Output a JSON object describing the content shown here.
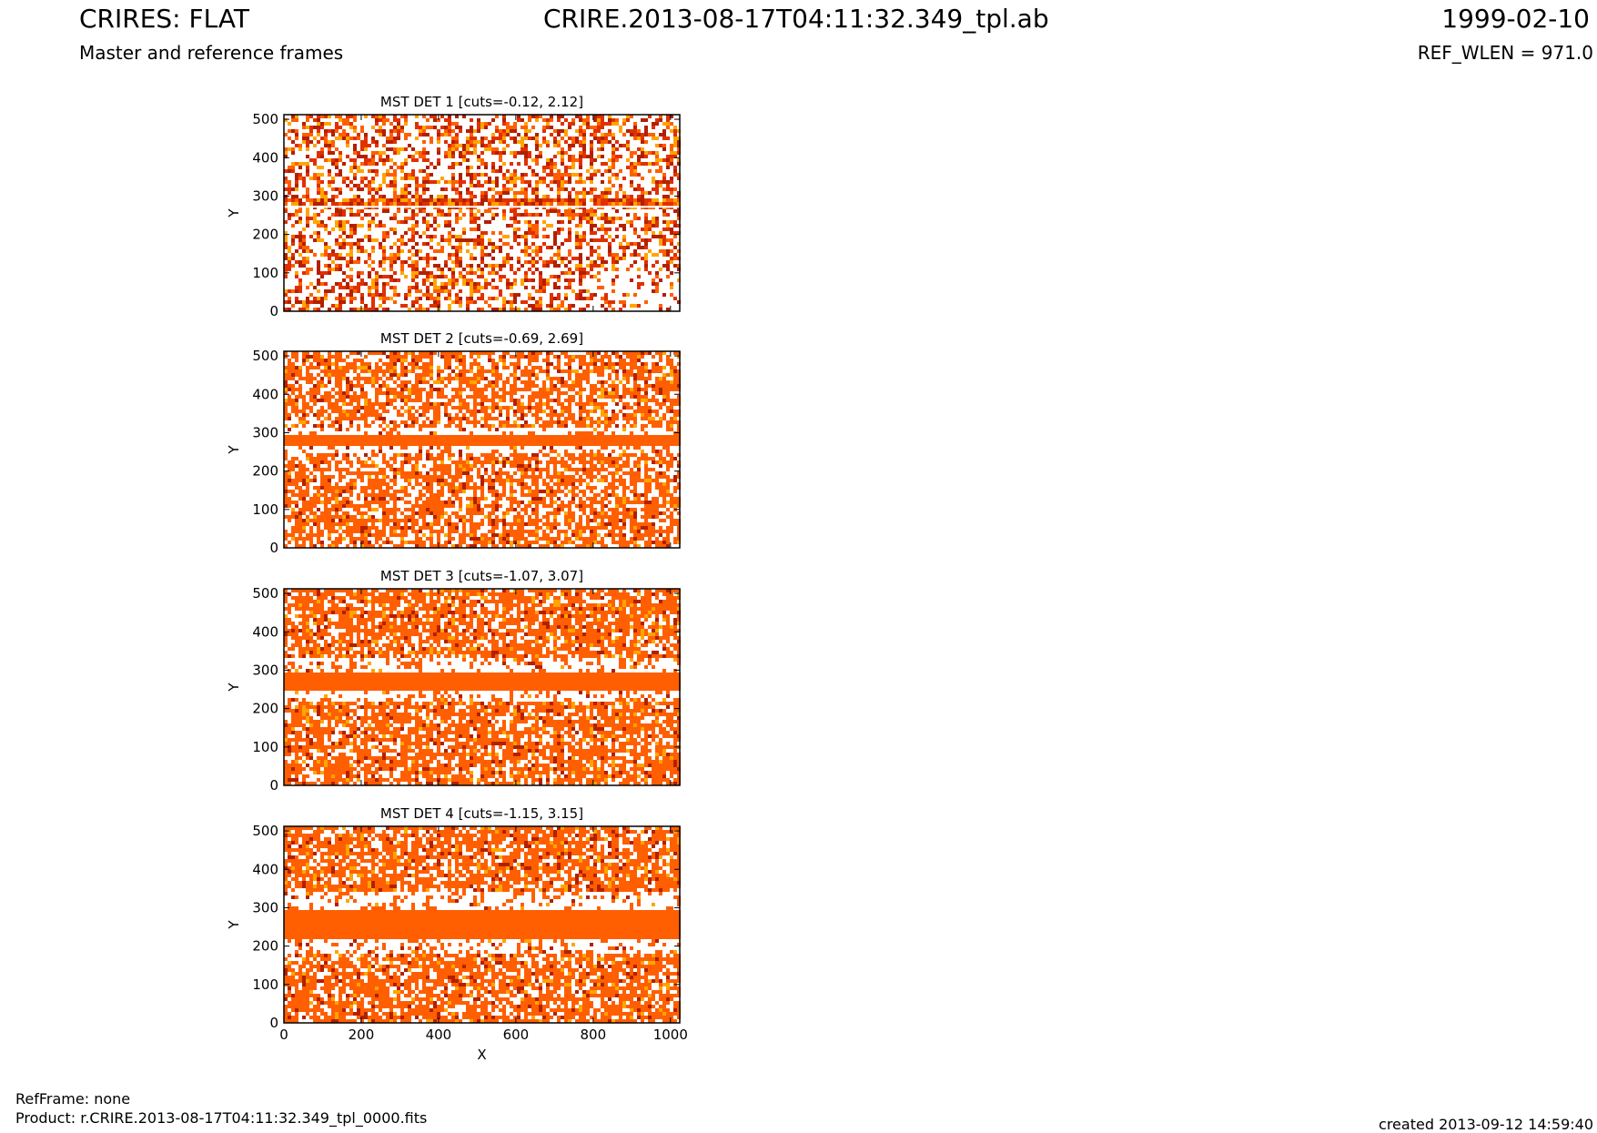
{
  "header": {
    "title": "CRIRES: FLAT",
    "subtitle": "Master and reference frames",
    "file": "CRIRE.2013-08-17T04:11:32.349_tpl.ab",
    "date": "1999-02-10",
    "ref_wlen": "REF_WLEN = 971.0"
  },
  "footer": {
    "refframe": "RefFrame: none",
    "product": "Product: r.CRIRE.2013-08-17T04:11:32.349_tpl_0000.fits",
    "created": "created 2013-09-12 14:59:40"
  },
  "colors": {
    "dominant": "#ff5f00",
    "dark_speckle": "#b32000",
    "mid_speckle": "#e03000",
    "light_speckle": "#ffa500",
    "background": "#ffffff"
  },
  "chart_data": [
    {
      "type": "heatmap",
      "title": "MST DET 1 [cuts=-0.12, 2.12]",
      "xlabel": "",
      "ylabel": "Y",
      "xlim": [
        0,
        1024
      ],
      "ylim": [
        0,
        512
      ],
      "xticks": [],
      "yticks": [
        0,
        100,
        200,
        300,
        400,
        500
      ],
      "band_y_center": 290,
      "band_y_halfwidth": 12,
      "band_fill_fraction": 0.9,
      "background_fill_fraction": 0.42,
      "white_line_y": 272
    },
    {
      "type": "heatmap",
      "title": "MST DET 2 [cuts=-0.69, 2.69]",
      "xlabel": "",
      "ylabel": "Y",
      "xlim": [
        0,
        1024
      ],
      "ylim": [
        0,
        512
      ],
      "xticks": [],
      "yticks": [
        0,
        100,
        200,
        300,
        400,
        500
      ],
      "band_y_center": 285,
      "band_y_halfwidth": 15,
      "band_fill_fraction": 1.0,
      "background_fill_fraction": 0.62,
      "white_gap_halfwidth": 30
    },
    {
      "type": "heatmap",
      "title": "MST DET 3 [cuts=-1.07, 3.07]",
      "xlabel": "",
      "ylabel": "Y",
      "xlim": [
        0,
        1024
      ],
      "ylim": [
        0,
        512
      ],
      "xticks": [],
      "yticks": [
        0,
        100,
        200,
        300,
        400,
        500
      ],
      "band_y_center": 278,
      "band_y_halfwidth": 25,
      "band_fill_fraction": 1.0,
      "background_fill_fraction": 0.7,
      "white_gap_halfwidth": 55
    },
    {
      "type": "heatmap",
      "title": "MST DET 4 [cuts=-1.15, 3.15]",
      "xlabel": "X",
      "ylabel": "Y",
      "xlim": [
        0,
        1024
      ],
      "ylim": [
        0,
        512
      ],
      "xticks": [
        0,
        200,
        400,
        600,
        800,
        1000
      ],
      "yticks": [
        0,
        100,
        200,
        300,
        400,
        500
      ],
      "band_y_center": 265,
      "band_y_halfwidth": 38,
      "band_fill_fraction": 1.0,
      "background_fill_fraction": 0.7,
      "white_gap_halfwidth": 80
    }
  ]
}
